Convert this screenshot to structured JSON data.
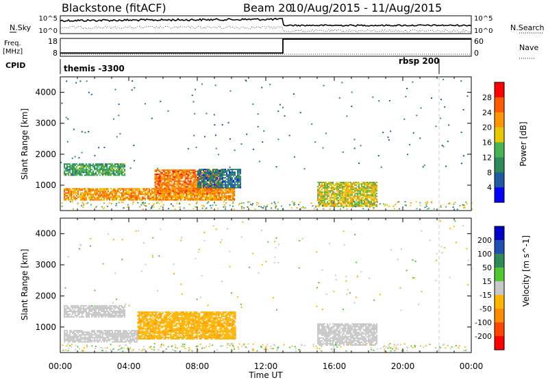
{
  "header": {
    "station": "Blackstone (fitACF)",
    "beam": "Beam 20",
    "dates": "10/Aug/2015 - 11/Aug/2015"
  },
  "left_labels": {
    "nsky": "N.Sky",
    "freq_line1": "Freq.",
    "freq_line2": "[MHz]",
    "cpid": "CPID"
  },
  "right_labels": {
    "nsearch": "N.Search",
    "nave": "Nave"
  },
  "noise_panel": {
    "left_ticks": [
      "10^5",
      "10^0"
    ],
    "right_ticks": [
      "10^5",
      "10^0"
    ]
  },
  "freq_panel": {
    "left_ticks": [
      "18",
      "8"
    ],
    "right_ticks": [
      "60",
      "0"
    ],
    "freq_before_mhz": 10,
    "freq_after_mhz": 18,
    "change_hour": 13
  },
  "cpid_panel": {
    "programs": [
      {
        "label": "themis -3300",
        "start_hour": 0
      },
      {
        "label": "rbsp 200",
        "start_hour": 24
      }
    ]
  },
  "colorbars": [
    {
      "name": "Power [dB]",
      "ticks": [
        "28",
        "24",
        "20",
        "16",
        "12",
        "8",
        "4"
      ],
      "colors": [
        "#ff0000",
        "#ff5a00",
        "#ff9600",
        "#e8c800",
        "#46b450",
        "#2e8b57",
        "#1e5aa0",
        "#0000ff"
      ]
    },
    {
      "name": "Velocity [m s^-1]",
      "ticks": [
        "200",
        "100",
        "50",
        "15",
        "-15",
        "-50",
        "-100",
        "-200"
      ],
      "colors": [
        "#0000c8",
        "#1e50b4",
        "#2e8b57",
        "#50c832",
        "#c8c8c8",
        "#ffb400",
        "#ff8c00",
        "#ff4600",
        "#ff0000"
      ]
    }
  ],
  "chart_data": [
    {
      "type": "heatmap",
      "title": "",
      "xlabel": "Time UT",
      "ylabel": "Slant Range [km]",
      "quantity": "Power [dB]",
      "xlim": [
        0,
        24
      ],
      "ylim": [
        180,
        4500
      ],
      "x_tick_labels": [
        "00:00",
        "04:00",
        "08:00",
        "12:00",
        "16:00",
        "20:00",
        "00:00"
      ],
      "y_ticks": [
        1000,
        2000,
        3000,
        4000
      ],
      "echo_regions": [
        {
          "t": [
            0.2,
            10.2
          ],
          "range": [
            500,
            900
          ],
          "level_db": 22
        },
        {
          "t": [
            5.5,
            9.5
          ],
          "range": [
            700,
            1500
          ],
          "level_db": 24
        },
        {
          "t": [
            0.2,
            3.8
          ],
          "range": [
            1300,
            1700
          ],
          "level_db": 12
        },
        {
          "t": [
            15.0,
            18.5
          ],
          "range": [
            300,
            1100
          ],
          "level_db": 18
        },
        {
          "t": [
            8.0,
            10.5
          ],
          "range": [
            900,
            1500
          ],
          "level_db": 8
        }
      ]
    },
    {
      "type": "heatmap",
      "title": "",
      "xlabel": "Time UT",
      "ylabel": "Slant Range [km]",
      "quantity": "Velocity [m s^-1]",
      "xlim": [
        0,
        24
      ],
      "ylim": [
        180,
        4500
      ],
      "x_tick_labels": [
        "00:00",
        "04:00",
        "08:00",
        "12:00",
        "16:00",
        "20:00",
        "00:00"
      ],
      "y_ticks": [
        1000,
        2000,
        3000,
        4000
      ],
      "echo_regions": [
        {
          "t": [
            4.5,
            10.2
          ],
          "range": [
            600,
            1500
          ],
          "velocity": -40
        },
        {
          "t": [
            0.2,
            4.5
          ],
          "range": [
            500,
            900
          ],
          "velocity": 0
        },
        {
          "t": [
            0.2,
            3.8
          ],
          "range": [
            1300,
            1700
          ],
          "velocity": 0
        },
        {
          "t": [
            15.0,
            18.5
          ],
          "range": [
            400,
            1100
          ],
          "velocity": 0
        }
      ]
    }
  ]
}
